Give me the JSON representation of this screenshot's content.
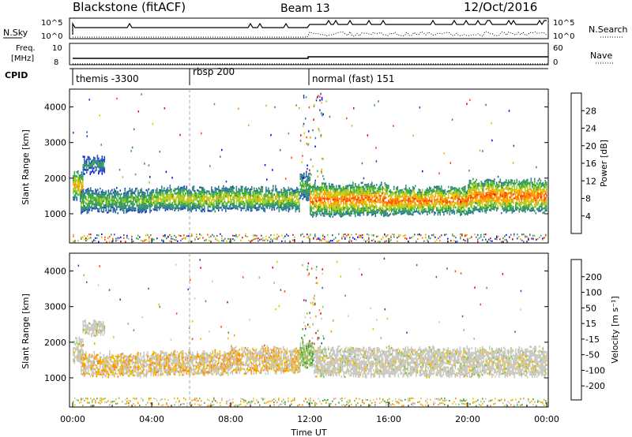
{
  "header": {
    "station": "Blackstone (fitACF)",
    "beam": "Beam 13",
    "date": "12/Oct/2016"
  },
  "top_panels": {
    "nsky_label": "N.Sky",
    "nsearch_label": "N.Search",
    "nsky_ticks": [
      "10^5",
      "10^0"
    ],
    "nsearch_ticks": [
      "10^5",
      "10^0"
    ],
    "freq_label_line1": "Freq.",
    "freq_label_line2": "[MHz]",
    "freq_ticks": [
      "10",
      "8"
    ],
    "nave_label": "Nave",
    "nave_ticks": [
      "60",
      "0"
    ],
    "cpid_label": "CPID",
    "cpid_segments": [
      {
        "label": "themis -3300",
        "start": 0.0
      },
      {
        "label": "rbsp 200",
        "start": 6.0
      },
      {
        "label": "normal (fast) 151",
        "start": 12.0
      }
    ]
  },
  "chart_data": [
    {
      "type": "heatmap",
      "title": "Power",
      "ylabel": "Slant Range [km]",
      "xlim": [
        0,
        24
      ],
      "ylim": [
        180,
        4500
      ],
      "yticks": [
        1000,
        2000,
        3000,
        4000
      ],
      "colorbar": {
        "label": "Power [dB]",
        "ticks": [
          4,
          8,
          12,
          16,
          20,
          24,
          28
        ],
        "range": [
          0,
          32
        ],
        "colors": [
          "#0000ff",
          "#1f3fc0",
          "#2e6fa8",
          "#2f8f6f",
          "#3aaa3a",
          "#9ccd25",
          "#f0c000",
          "#ff8c00",
          "#ff4500",
          "#e60000"
        ]
      },
      "bands": [
        {
          "from": 0.0,
          "to": 0.5,
          "low": 1350,
          "high": 2150,
          "value": 20
        },
        {
          "from": 0.5,
          "to": 1.6,
          "low": 2150,
          "high": 2550,
          "value": 10
        },
        {
          "from": 0.4,
          "to": 4.0,
          "low": 1050,
          "high": 1650,
          "value": 14
        },
        {
          "from": 4.0,
          "to": 11.5,
          "low": 1100,
          "high": 1700,
          "value": 17
        },
        {
          "from": 11.5,
          "to": 12.0,
          "low": 1400,
          "high": 2100,
          "value": 14
        },
        {
          "from": 12.0,
          "to": 16.0,
          "low": 950,
          "high": 1800,
          "value": 22
        },
        {
          "from": 16.0,
          "to": 20.0,
          "low": 1000,
          "high": 1700,
          "value": 22
        },
        {
          "from": 20.0,
          "to": 24.0,
          "low": 1050,
          "high": 1900,
          "value": 22
        }
      ]
    },
    {
      "type": "heatmap",
      "title": "Velocity",
      "ylabel": "Slant Range [km]",
      "xlabel": "Time UT",
      "xlim": [
        0,
        24
      ],
      "ylim": [
        180,
        4500
      ],
      "xticks": [
        "00:00",
        "04:00",
        "08:00",
        "12:00",
        "16:00",
        "20:00",
        "00:00"
      ],
      "yticks": [
        1000,
        2000,
        3000,
        4000
      ],
      "colorbar": {
        "label": "Velocity [m s⁻¹]",
        "ticks": [
          "200",
          "100",
          "50",
          "15",
          "-15",
          "-50",
          "-100",
          "-200"
        ],
        "colors": [
          "#e60000",
          "#ff4500",
          "#ff8c00",
          "#f5b800",
          "#c8c8c0",
          "#c8c8c0",
          "#90c040",
          "#40a040",
          "#2e6f6f",
          "#1f3fc0"
        ]
      },
      "bands": [
        {
          "from": 0.0,
          "to": 0.5,
          "low": 1400,
          "high": 2100,
          "value": 0
        },
        {
          "from": 0.5,
          "to": 1.6,
          "low": 2200,
          "high": 2550,
          "value": 0
        },
        {
          "from": 0.4,
          "to": 4.0,
          "low": 1050,
          "high": 1650,
          "value": -30
        },
        {
          "from": 4.0,
          "to": 8.0,
          "low": 1100,
          "high": 1700,
          "value": -40
        },
        {
          "from": 8.0,
          "to": 11.5,
          "low": 1150,
          "high": 1800,
          "value": -60
        },
        {
          "from": 11.5,
          "to": 12.2,
          "low": 1300,
          "high": 2000,
          "value": 30
        },
        {
          "from": 12.2,
          "to": 24.0,
          "low": 1050,
          "high": 1800,
          "value": 0
        }
      ]
    }
  ]
}
